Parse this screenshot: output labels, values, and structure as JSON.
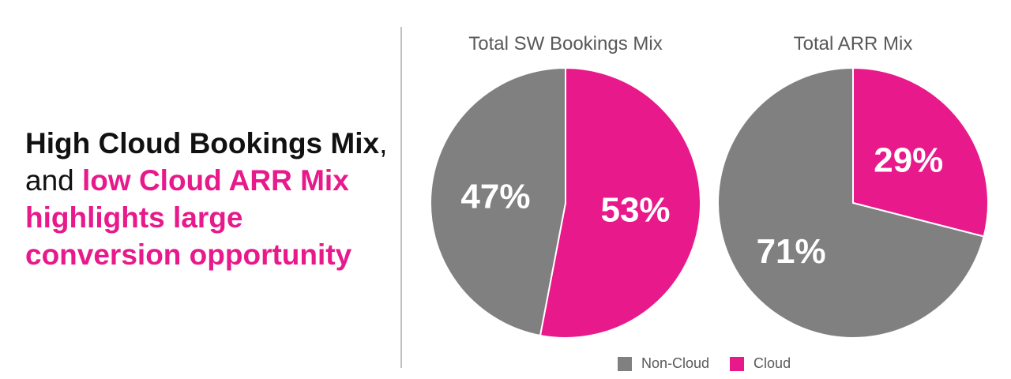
{
  "headline": {
    "part1_bold": "High Cloud Bookings Mix",
    "part2_plain": ", and ",
    "part3_accent": "low Cloud ARR Mix highlights large conversion opportunity"
  },
  "colors": {
    "non_cloud": "#808080",
    "cloud": "#e8198b",
    "divider": "#bfbfbf",
    "text_dark": "#111111",
    "text_muted": "#595959"
  },
  "chart_data": [
    {
      "type": "pie",
      "title": "Total SW Bookings Mix",
      "categories": [
        "Non-Cloud",
        "Cloud"
      ],
      "values": [
        47,
        53
      ],
      "labels": [
        "47%",
        "53%"
      ]
    },
    {
      "type": "pie",
      "title": "Total ARR Mix",
      "categories": [
        "Non-Cloud",
        "Cloud"
      ],
      "values": [
        71,
        29
      ],
      "labels": [
        "71%",
        "29%"
      ]
    }
  ],
  "legend": {
    "items": [
      {
        "label": "Non-Cloud",
        "color": "#808080"
      },
      {
        "label": "Cloud",
        "color": "#e8198b"
      }
    ],
    "placement": "bottom"
  }
}
